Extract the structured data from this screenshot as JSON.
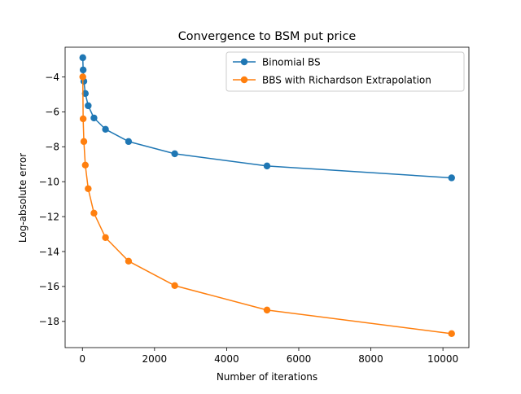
{
  "chart_data": {
    "type": "line",
    "title": "Convergence to BSM put price",
    "xlabel": "Number of iterations",
    "ylabel": "Log-absolute error",
    "xlim": [
      -480,
      10720
    ],
    "ylim": [
      -19.5,
      -2.3
    ],
    "xticks": [
      0,
      2000,
      4000,
      6000,
      8000,
      10000
    ],
    "yticks": [
      -18,
      -16,
      -14,
      -12,
      -10,
      -8,
      -6,
      -4
    ],
    "grid": false,
    "legend_position": "top-right",
    "series": [
      {
        "name": "Binomial BS",
        "color": "#1f77b4",
        "x": [
          10,
          20,
          40,
          80,
          160,
          320,
          640,
          1280,
          2560,
          5120,
          10240
        ],
        "y": [
          -2.9,
          -3.6,
          -4.25,
          -4.95,
          -5.65,
          -6.35,
          -7.0,
          -7.7,
          -8.4,
          -9.1,
          -9.78
        ]
      },
      {
        "name": "BBS with Richardson Extrapolation",
        "color": "#ff7f0e",
        "x": [
          10,
          20,
          40,
          80,
          160,
          320,
          640,
          1280,
          2560,
          5120,
          10240
        ],
        "y": [
          -4.0,
          -6.4,
          -7.7,
          -9.05,
          -10.4,
          -11.8,
          -13.2,
          -14.55,
          -15.95,
          -17.35,
          -18.7
        ]
      }
    ]
  }
}
